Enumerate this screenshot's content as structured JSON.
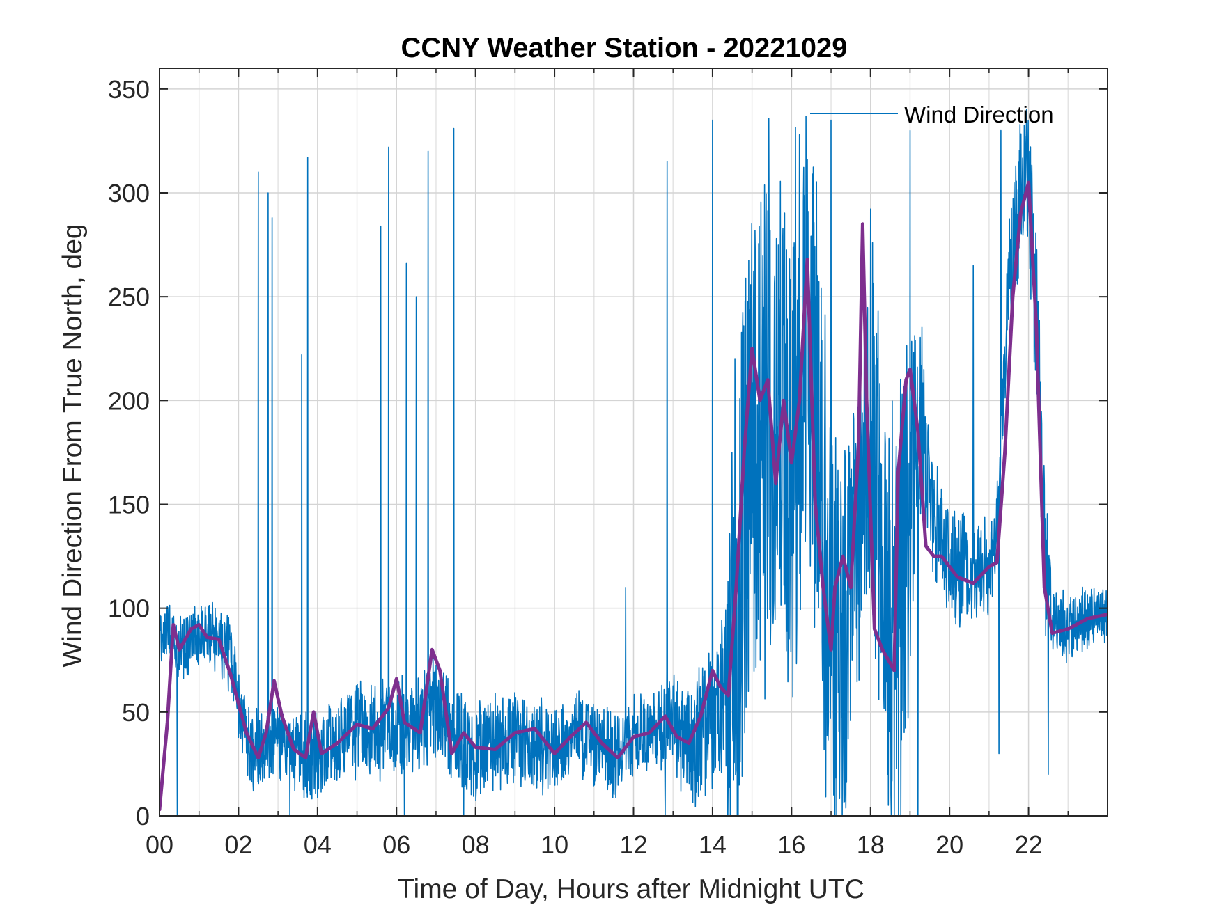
{
  "chart_data": {
    "type": "line",
    "title": "CCNY Weather Station - 20221029",
    "xlabel": "Time of Day, Hours after Midnight UTC",
    "ylabel": "Wind Direction From True North, deg",
    "xlim": [
      0,
      24
    ],
    "ylim": [
      0,
      360
    ],
    "xticks": [
      0,
      2,
      4,
      6,
      8,
      10,
      12,
      14,
      16,
      18,
      20,
      22
    ],
    "xtick_labels": [
      "00",
      "02",
      "04",
      "06",
      "08",
      "10",
      "12",
      "14",
      "16",
      "18",
      "20",
      "22"
    ],
    "yticks": [
      0,
      50,
      100,
      150,
      200,
      250,
      300,
      350
    ],
    "ytick_labels": [
      "0",
      "50",
      "100",
      "150",
      "200",
      "250",
      "300",
      "350"
    ],
    "grid": true,
    "legend": {
      "entries": [
        "Wind Direction"
      ],
      "location": "top-right",
      "box": false
    },
    "series": [
      {
        "name": "Wind Direction",
        "kind": "raw",
        "color": "#0072BD",
        "anchors": {
          "x": [
            0,
            0.2,
            0.4,
            0.6,
            1.0,
            1.5,
            1.8,
            2.0,
            2.3,
            2.6,
            3.0,
            3.5,
            4.0,
            4.5,
            5.0,
            5.5,
            6.0,
            6.5,
            7.0,
            7.5,
            8.0,
            9.0,
            10.0,
            10.5,
            11.0,
            11.5,
            12.0,
            12.5,
            13.0,
            13.5,
            14.0,
            14.4,
            14.7,
            15.0,
            15.5,
            16.0,
            16.5,
            17.0,
            17.3,
            17.6,
            18.0,
            18.3,
            18.6,
            19.0,
            19.3,
            19.6,
            20.0,
            20.5,
            21.0,
            21.2,
            21.5,
            21.8,
            22.0,
            22.2,
            22.4,
            22.6,
            23.0,
            23.5,
            24.0
          ],
          "y": [
            85,
            92,
            82,
            80,
            88,
            85,
            75,
            55,
            35,
            32,
            35,
            30,
            30,
            38,
            42,
            40,
            45,
            40,
            55,
            38,
            32,
            38,
            32,
            40,
            35,
            30,
            38,
            42,
            45,
            35,
            45,
            60,
            120,
            180,
            200,
            190,
            210,
            110,
            90,
            140,
            200,
            120,
            80,
            150,
            190,
            140,
            125,
            115,
            120,
            135,
            260,
            300,
            305,
            240,
            130,
            95,
            90,
            95,
            98
          ]
        },
        "spikes": [
          {
            "x": 2.5,
            "y": 310
          },
          {
            "x": 2.75,
            "y": 300
          },
          {
            "x": 2.85,
            "y": 288
          },
          {
            "x": 3.6,
            "y": 222
          },
          {
            "x": 3.75,
            "y": 317
          },
          {
            "x": 5.6,
            "y": 284
          },
          {
            "x": 5.8,
            "y": 322
          },
          {
            "x": 6.25,
            "y": 266
          },
          {
            "x": 6.5,
            "y": 250
          },
          {
            "x": 6.8,
            "y": 320
          },
          {
            "x": 7.45,
            "y": 331
          },
          {
            "x": 11.8,
            "y": 110
          },
          {
            "x": 12.85,
            "y": 315
          },
          {
            "x": 14.0,
            "y": 335
          },
          {
            "x": 16.2,
            "y": 328
          },
          {
            "x": 17.0,
            "y": 335
          },
          {
            "x": 19.0,
            "y": 330
          },
          {
            "x": 20.6,
            "y": 265
          },
          {
            "x": 21.3,
            "y": 330
          },
          {
            "x": 21.95,
            "y": 340
          }
        ],
        "dropouts": [
          {
            "x": 0.45,
            "y": 0
          },
          {
            "x": 3.3,
            "y": 0
          },
          {
            "x": 6.2,
            "y": 0
          },
          {
            "x": 7.7,
            "y": 0
          },
          {
            "x": 12.8,
            "y": 0
          },
          {
            "x": 17.1,
            "y": 0
          },
          {
            "x": 19.2,
            "y": 0
          },
          {
            "x": 21.25,
            "y": 30
          },
          {
            "x": 22.5,
            "y": 20
          }
        ],
        "noise_amplitude": [
          [
            0,
            15
          ],
          [
            2,
            22
          ],
          [
            6.9,
            28
          ],
          [
            12.5,
            22
          ],
          [
            14.3,
            45
          ],
          [
            14.55,
            150
          ],
          [
            16.8,
            150
          ],
          [
            17.6,
            95
          ],
          [
            18.8,
            140
          ],
          [
            19.35,
            40
          ],
          [
            21.3,
            25
          ],
          [
            21.5,
            30
          ],
          [
            22.4,
            60
          ],
          [
            22.6,
            20
          ],
          [
            24,
            16
          ]
        ]
      },
      {
        "name": "",
        "kind": "smoothed",
        "color": "#7E2F8E",
        "x": [
          0,
          0.2,
          0.35,
          0.5,
          0.8,
          1.0,
          1.2,
          1.5,
          1.8,
          2.2,
          2.5,
          2.7,
          2.9,
          3.1,
          3.4,
          3.7,
          3.9,
          4.1,
          4.5,
          5.0,
          5.4,
          5.8,
          6.0,
          6.2,
          6.6,
          6.9,
          7.1,
          7.4,
          7.7,
          8.0,
          8.5,
          9.0,
          9.5,
          10.0,
          10.4,
          10.8,
          11.2,
          11.6,
          12.0,
          12.4,
          12.8,
          13.1,
          13.4,
          13.7,
          14.0,
          14.2,
          14.4,
          14.6,
          14.8,
          15.0,
          15.2,
          15.4,
          15.6,
          15.8,
          16.0,
          16.2,
          16.4,
          16.6,
          16.8,
          17.0,
          17.1,
          17.3,
          17.5,
          17.7,
          17.8,
          17.9,
          18.1,
          18.3,
          18.6,
          18.7,
          18.9,
          19.0,
          19.2,
          19.4,
          19.6,
          19.8,
          20.2,
          20.6,
          21.0,
          21.2,
          21.4,
          21.6,
          21.8,
          22.0,
          22.2,
          22.4,
          22.6,
          23.0,
          23.5,
          24.0
        ],
        "y": [
          3,
          45,
          92,
          80,
          90,
          92,
          86,
          85,
          68,
          40,
          28,
          40,
          65,
          48,
          32,
          28,
          50,
          30,
          35,
          44,
          42,
          52,
          66,
          45,
          40,
          80,
          70,
          30,
          40,
          33,
          32,
          40,
          42,
          30,
          38,
          45,
          35,
          28,
          38,
          40,
          48,
          38,
          35,
          48,
          70,
          62,
          58,
          110,
          175,
          225,
          200,
          210,
          160,
          200,
          170,
          200,
          268,
          150,
          110,
          80,
          110,
          125,
          110,
          180,
          285,
          200,
          90,
          80,
          70,
          165,
          210,
          215,
          185,
          130,
          125,
          125,
          115,
          112,
          120,
          122,
          175,
          250,
          290,
          305,
          235,
          110,
          88,
          90,
          95,
          97
        ]
      }
    ]
  }
}
